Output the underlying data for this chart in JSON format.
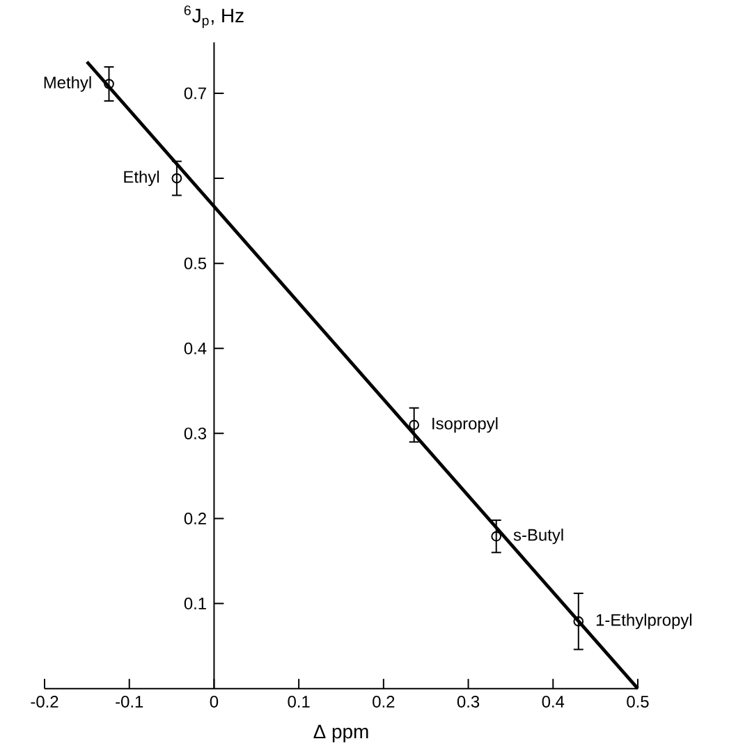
{
  "chart_data": {
    "type": "scatter",
    "xlabel": "Δ ppm",
    "ylabel": "$^{6}$J$_{p}$,  Hz",
    "xlim": [
      -0.2,
      0.5
    ],
    "ylim": [
      0,
      0.76
    ],
    "xticks": [
      -0.2,
      -0.1,
      0,
      0.1,
      0.2,
      0.3,
      0.4,
      0.5
    ],
    "yticks": [
      0.1,
      0.2,
      0.3,
      0.4,
      0.5,
      {
        "value": 0.6,
        "label": null
      },
      0.7
    ],
    "series": [
      {
        "color": "#000000",
        "marker": "circle",
        "x": [
          -0.124,
          -0.044,
          0.236,
          0.333,
          0.43
        ],
        "values": [
          0.711,
          0.6,
          0.31,
          0.179,
          0.079
        ],
        "errors": [
          0.02,
          0.02,
          0.02,
          0.019,
          0.033
        ]
      },
      {
        "type": "line",
        "color": "#000000",
        "x": [
          -0.15,
          0.5
        ],
        "values": [
          0.737,
          0
        ]
      }
    ],
    "annotations": [
      {
        "text": "Methyl",
        "x": -0.124,
        "y": 0.711
      },
      {
        "text": "Ethyl",
        "x": -0.044,
        "y": 0.6
      },
      {
        "text": "Isopropyl",
        "x": 0.236,
        "y": 0.31
      },
      {
        "text": "s-Butyl",
        "x": 0.333,
        "y": 0.179
      },
      {
        "text": "1-Ethylpropyl",
        "x": 0.43,
        "y": 0.079
      }
    ]
  }
}
